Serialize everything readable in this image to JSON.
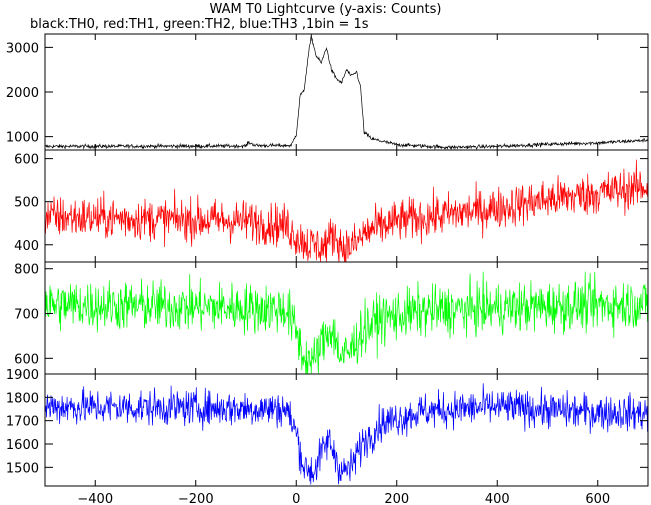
{
  "title": "WAM T0 Lightcurve (y-axis: Counts)",
  "subtitle": "black:TH0, red:TH1, green:TH2, blue:TH3 ,1bin = 1s",
  "chart_data": {
    "type": "line",
    "xlim": [
      -500,
      700
    ],
    "xticks": [
      -400,
      -200,
      0,
      200,
      400,
      600
    ],
    "panels": [
      {
        "series": "TH0",
        "color": "#000000",
        "ylim": [
          700,
          3300
        ],
        "yticks": [
          1000,
          2000,
          3000
        ],
        "profile": [
          [
            -500,
            780
          ],
          [
            -100,
            790
          ],
          [
            -95,
            870
          ],
          [
            -80,
            800
          ],
          [
            -10,
            800
          ],
          [
            0,
            1050
          ],
          [
            8,
            1950
          ],
          [
            15,
            2000
          ],
          [
            25,
            2900
          ],
          [
            30,
            3250
          ],
          [
            40,
            2800
          ],
          [
            50,
            2650
          ],
          [
            60,
            3000
          ],
          [
            70,
            2500
          ],
          [
            80,
            2300
          ],
          [
            90,
            2200
          ],
          [
            100,
            2500
          ],
          [
            110,
            2350
          ],
          [
            120,
            2450
          ],
          [
            128,
            2100
          ],
          [
            135,
            1100
          ],
          [
            150,
            950
          ],
          [
            200,
            820
          ],
          [
            300,
            760
          ],
          [
            400,
            780
          ],
          [
            500,
            830
          ],
          [
            600,
            860
          ],
          [
            700,
            920
          ]
        ],
        "noise": 30
      },
      {
        "series": "TH1",
        "color": "#ff0000",
        "ylim": [
          360,
          620
        ],
        "yticks": [
          400,
          500,
          600
        ],
        "profile": [
          [
            -500,
            465
          ],
          [
            -300,
            460
          ],
          [
            -100,
            455
          ],
          [
            -20,
            445
          ],
          [
            0,
            420
          ],
          [
            25,
            400
          ],
          [
            55,
            395
          ],
          [
            75,
            425
          ],
          [
            95,
            390
          ],
          [
            115,
            400
          ],
          [
            140,
            430
          ],
          [
            200,
            455
          ],
          [
            300,
            470
          ],
          [
            400,
            485
          ],
          [
            500,
            505
          ],
          [
            600,
            520
          ],
          [
            700,
            535
          ]
        ],
        "noise": 35
      },
      {
        "series": "TH2",
        "color": "#00ff00",
        "ylim": [
          565,
          815
        ],
        "yticks": [
          600,
          700,
          800
        ],
        "profile": [
          [
            -500,
            720
          ],
          [
            -200,
            715
          ],
          [
            -20,
            710
          ],
          [
            0,
            660
          ],
          [
            15,
            600
          ],
          [
            35,
            590
          ],
          [
            50,
            630
          ],
          [
            70,
            670
          ],
          [
            90,
            600
          ],
          [
            110,
            620
          ],
          [
            130,
            660
          ],
          [
            170,
            690
          ],
          [
            250,
            705
          ],
          [
            400,
            712
          ],
          [
            550,
            718
          ],
          [
            700,
            722
          ]
        ],
        "noise": 40
      },
      {
        "series": "TH3",
        "color": "#0000ff",
        "ylim": [
          1420,
          1900
        ],
        "yticks": [
          1500,
          1600,
          1700,
          1800,
          1900
        ],
        "profile": [
          [
            -500,
            1760
          ],
          [
            -200,
            1755
          ],
          [
            -20,
            1750
          ],
          [
            0,
            1650
          ],
          [
            15,
            1500
          ],
          [
            35,
            1480
          ],
          [
            50,
            1560
          ],
          [
            65,
            1620
          ],
          [
            90,
            1480
          ],
          [
            110,
            1500
          ],
          [
            130,
            1600
          ],
          [
            170,
            1690
          ],
          [
            250,
            1740
          ],
          [
            400,
            1760
          ],
          [
            550,
            1740
          ],
          [
            700,
            1730
          ]
        ],
        "noise": 55
      }
    ]
  }
}
